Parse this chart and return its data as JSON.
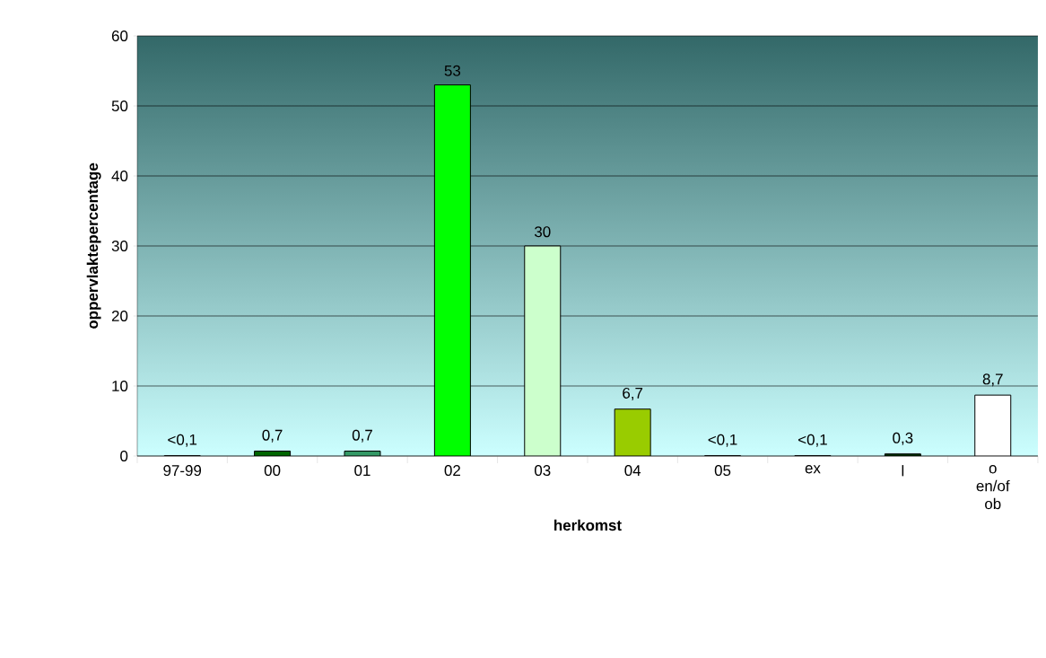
{
  "chart_data": {
    "type": "bar",
    "xlabel": "herkomst",
    "ylabel": "oppervlaktepercentage",
    "categories": [
      "97-99",
      "00",
      "01",
      "02",
      "03",
      "04",
      "05",
      "ex",
      "l",
      "o en/of ob"
    ],
    "values": [
      0.05,
      0.7,
      0.7,
      53,
      30,
      6.7,
      0.05,
      0.05,
      0.3,
      8.7
    ],
    "value_labels": [
      "<0,1",
      "0,7",
      "0,7",
      "53",
      "30",
      "6,7",
      "<0,1",
      "<0,1",
      "0,3",
      "8,7"
    ],
    "colors": [
      "#ffffff",
      "#006600",
      "#339966",
      "#00ff00",
      "#ccffcc",
      "#99cc00",
      "#ffffff",
      "#ffffff",
      "#003300",
      "#ffffff"
    ],
    "ylim": [
      0,
      60
    ],
    "yticks": [
      0,
      10,
      20,
      30,
      40,
      50,
      60
    ],
    "grid": "y"
  }
}
